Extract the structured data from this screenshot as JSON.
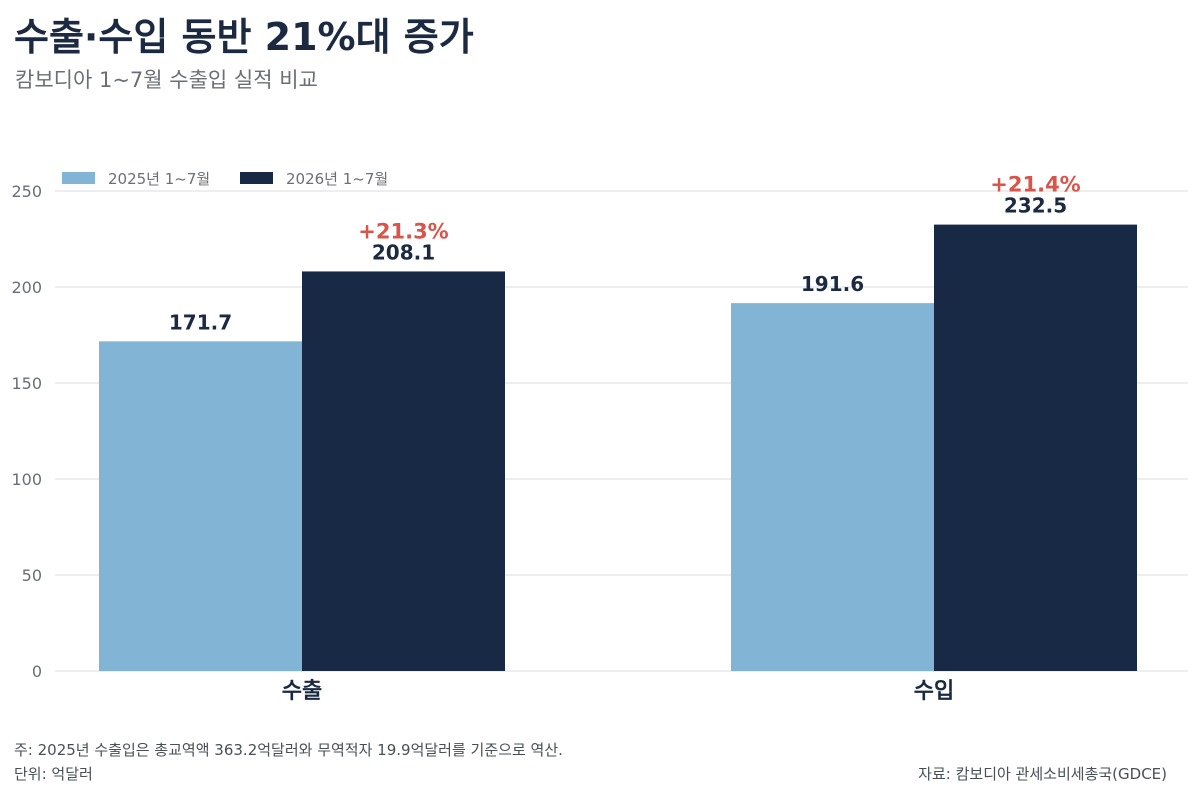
{
  "title": "수출·수입 동반 21%대 증가",
  "subtitle": "캄보디아 1~7월 수출입 실적 비교",
  "note": "주: 2025년 수출입은 총교역액 363.2억달러와 무역적자 19.9억달러를 기준으로 역산.",
  "unit": "단위: 억달러",
  "source": "자료: 캄보디아 관세소비세총국(GDCE)",
  "chart_data": {
    "type": "bar",
    "categories": [
      "수출",
      "수입"
    ],
    "series": [
      {
        "name": "2025년 1~7월",
        "values": [
          171.7,
          191.6
        ],
        "color": "#82b4d6"
      },
      {
        "name": "2026년 1~7월",
        "values": [
          208.1,
          232.5
        ],
        "color": "#172944"
      }
    ],
    "value_labels": [
      [
        "171.7",
        "191.6"
      ],
      [
        "208.1",
        "232.5"
      ]
    ],
    "changes": [
      "+21.3%",
      "+21.4%"
    ],
    "change_color": "#d9544a",
    "yticks": [
      0,
      50,
      100,
      150,
      200,
      250
    ],
    "ylim": [
      0,
      250
    ],
    "grid": true,
    "legend": "top-left"
  }
}
